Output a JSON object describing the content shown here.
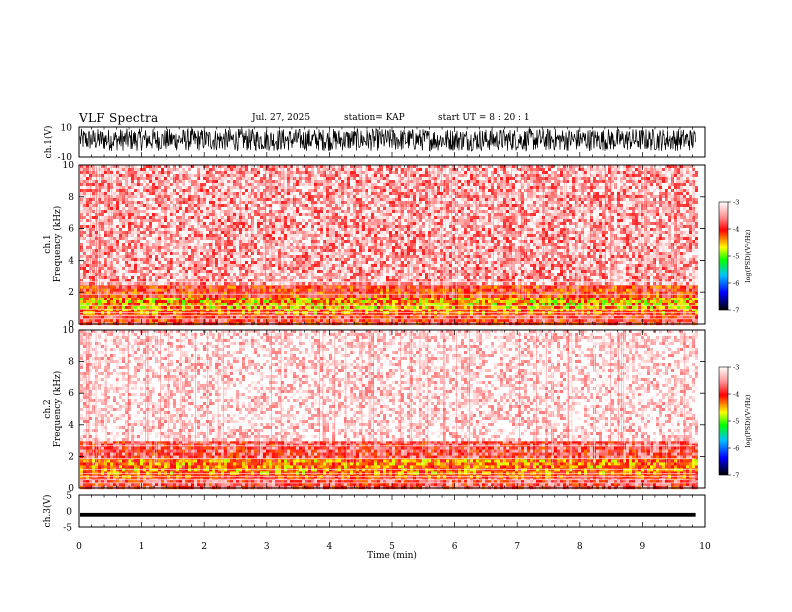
{
  "header": {
    "title": "VLF Spectra",
    "date": "Jul. 27, 2025",
    "station": "station= KAP",
    "start_ut": "start  UT =   8 : 20 : 1"
  },
  "chart_data": [
    {
      "type": "line",
      "panel": "ch1-waveform",
      "ylabel": "ch.1(V)",
      "ylim": [
        -10,
        10
      ],
      "yticks": [
        10,
        -10
      ],
      "description_level": "dense black oscillation, roughly -6 to 9 V",
      "x_range_min": [
        0,
        9.85
      ]
    },
    {
      "type": "heatmap",
      "panel": "ch1-spectrogram",
      "ylabel_lines": [
        "ch.1",
        "Frequency  (kHz)"
      ],
      "ylim": [
        0,
        10
      ],
      "yticks": [
        0,
        2,
        4,
        6,
        8,
        10
      ],
      "colorbar": {
        "label": "log(PSD)(V²/Hz)",
        "range": [
          -7,
          -3
        ],
        "ticks": [
          -3,
          -4,
          -5,
          -6,
          -7
        ],
        "colors": [
          "#ffffff",
          "#ff8080",
          "#ff0000",
          "#ffff00",
          "#00ff00",
          "#00c0ff",
          "#0000ff",
          "#000000"
        ]
      },
      "bands": [
        {
          "kHz": [
            0,
            0.7
          ],
          "level": -3.9
        },
        {
          "kHz": [
            0.7,
            1.0
          ],
          "level": -4.3
        },
        {
          "kHz": [
            1.0,
            1.7
          ],
          "level": -4.5
        },
        {
          "kHz": [
            1.7,
            2.6
          ],
          "level": -4.0
        },
        {
          "kHz": [
            2.6,
            10
          ],
          "level": -3.4
        }
      ]
    },
    {
      "type": "heatmap",
      "panel": "ch2-spectrogram",
      "ylabel_lines": [
        "ch.2",
        "Frequency  (kHz)"
      ],
      "ylim": [
        0,
        10
      ],
      "yticks": [
        0,
        2,
        4,
        6,
        8,
        10
      ],
      "colorbar": {
        "label": "log(PSD)(V²/Hz)",
        "range": [
          -7,
          -3
        ],
        "ticks": [
          -3,
          -4,
          -5,
          -6,
          -7
        ],
        "colors": [
          "#ffffff",
          "#ff8080",
          "#ff0000",
          "#ffff00",
          "#00ff00",
          "#00c0ff",
          "#0000ff",
          "#000000"
        ]
      },
      "bands": [
        {
          "kHz": [
            0,
            0.7
          ],
          "level": -3.8
        },
        {
          "kHz": [
            0.7,
            1.0
          ],
          "level": -4.1
        },
        {
          "kHz": [
            1.0,
            2.0
          ],
          "level": -4.3
        },
        {
          "kHz": [
            2.0,
            3.0
          ],
          "level": -3.8
        },
        {
          "kHz": [
            3.0,
            10
          ],
          "level": -3.1
        }
      ]
    },
    {
      "type": "line",
      "panel": "ch3-waveform",
      "ylabel": "ch.3(V)",
      "ylim": [
        -5,
        5
      ],
      "yticks": [
        5,
        0,
        -5
      ],
      "level": [
        -1.8,
        -0.6
      ],
      "xlabel": "Time  (min)",
      "xlim": [
        0,
        10
      ],
      "xticks": [
        0,
        1,
        2,
        3,
        4,
        5,
        6,
        7,
        8,
        9,
        10
      ]
    }
  ]
}
